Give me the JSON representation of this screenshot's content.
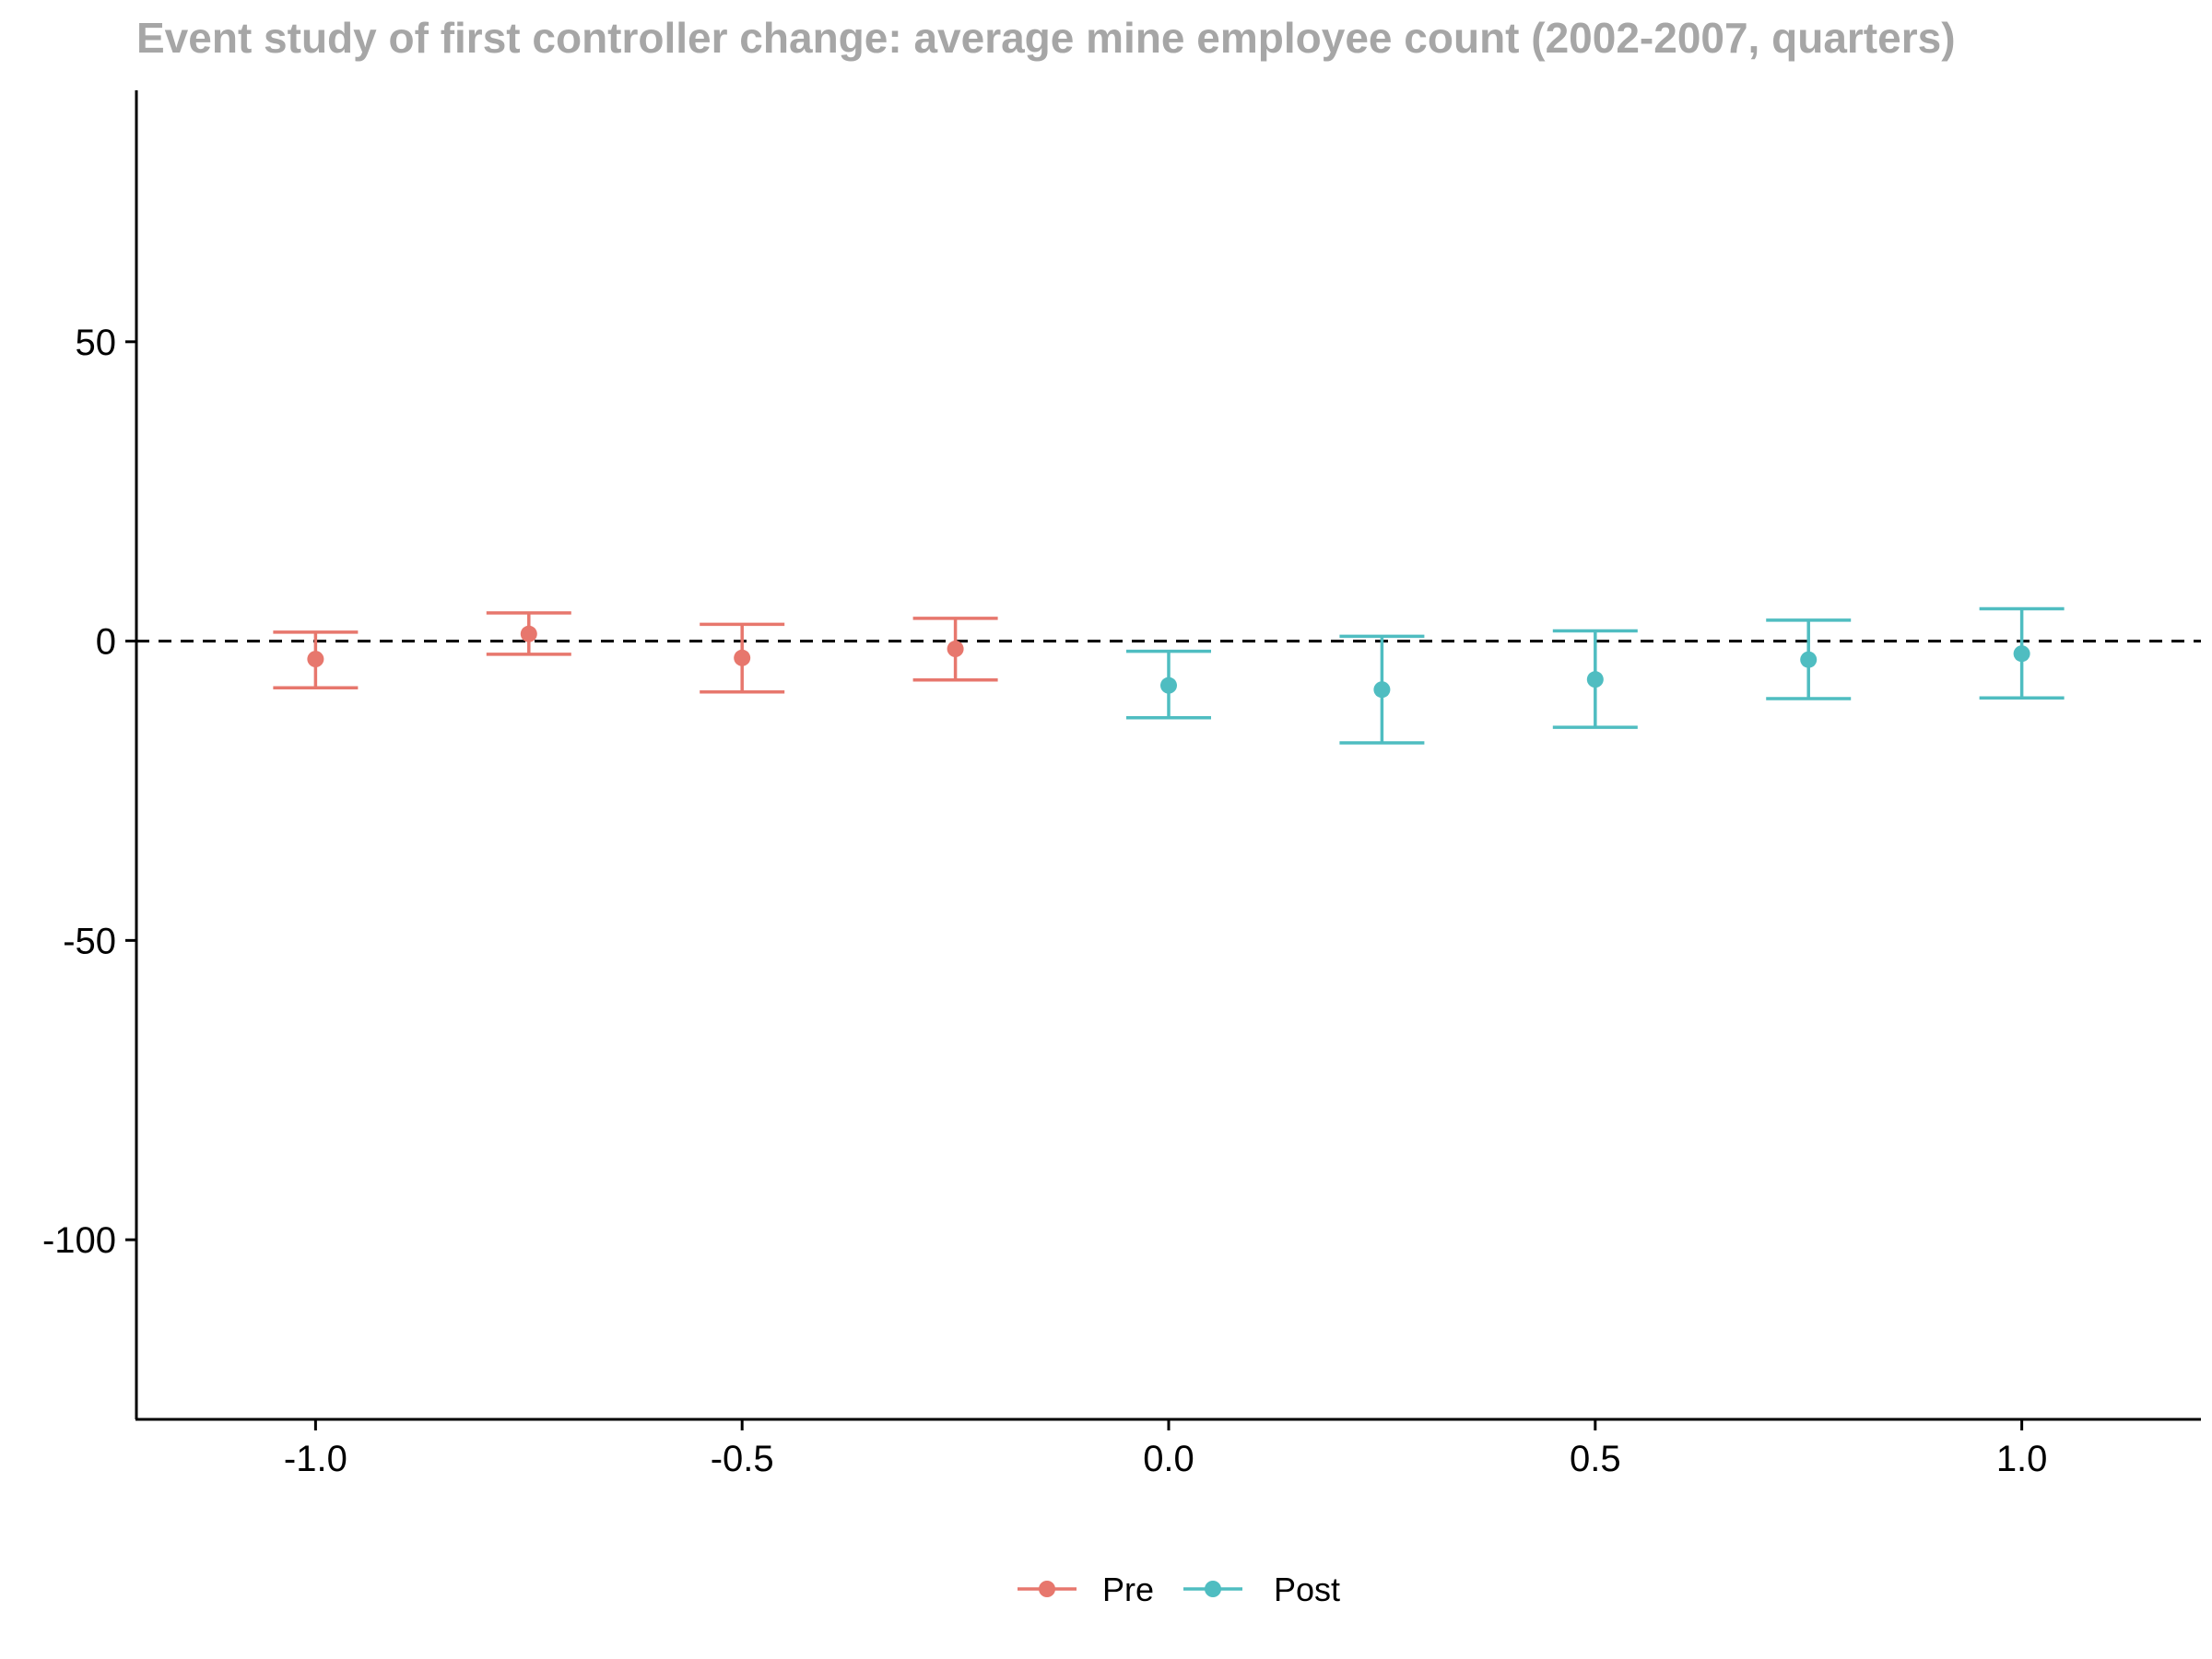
{
  "chart_data": {
    "type": "scatter",
    "title": "Event study of first controller change: average mine employee count (2002-2007, quarters)",
    "xlabel": "",
    "ylabel": "",
    "xlim": [
      -1.21,
      1.21
    ],
    "ylim": [
      -130,
      92
    ],
    "x_ticks": [
      -1.0,
      -0.5,
      0.0,
      0.5,
      1.0
    ],
    "x_tick_labels": [
      "-1.0",
      "-0.5",
      "0.0",
      "0.5",
      "1.0"
    ],
    "y_ticks": [
      50,
      0,
      -50,
      -100
    ],
    "y_tick_labels": [
      "50",
      "0",
      "-50",
      "-100"
    ],
    "reference_line": {
      "y": 0,
      "style": "dashed"
    },
    "grid": false,
    "legend_position": "bottom",
    "series": [
      {
        "name": "Pre",
        "color": "#e7776d",
        "points": [
          {
            "x": -1.0,
            "y": -3.0,
            "lower": -7.8,
            "upper": 1.5
          },
          {
            "x": -0.75,
            "y": 1.2,
            "lower": -2.2,
            "upper": 4.7
          },
          {
            "x": -0.5,
            "y": -2.8,
            "lower": -8.5,
            "upper": 2.8
          },
          {
            "x": -0.25,
            "y": -1.3,
            "lower": -6.5,
            "upper": 3.8
          }
        ]
      },
      {
        "name": "Post",
        "color": "#4fbdc1",
        "points": [
          {
            "x": 0.0,
            "y": -7.4,
            "lower": -12.8,
            "upper": -1.7
          },
          {
            "x": 0.25,
            "y": -8.1,
            "lower": -17.0,
            "upper": 0.8
          },
          {
            "x": 0.5,
            "y": -6.4,
            "lower": -14.4,
            "upper": 1.7
          },
          {
            "x": 0.75,
            "y": -3.1,
            "lower": -9.6,
            "upper": 3.5
          },
          {
            "x": 1.0,
            "y": -2.1,
            "lower": -9.5,
            "upper": 5.4
          }
        ]
      }
    ]
  }
}
